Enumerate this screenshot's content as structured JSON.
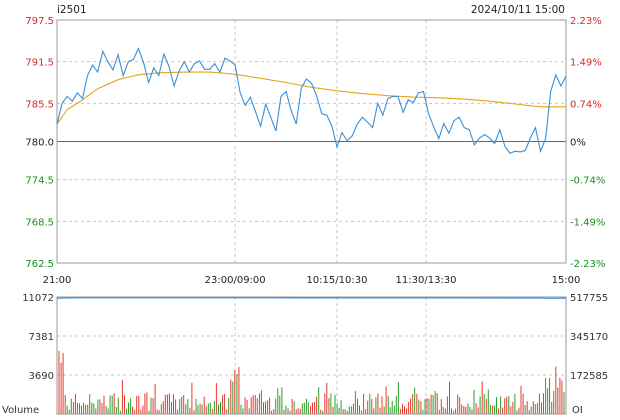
{
  "chart_data": {
    "type": "line",
    "symbol": "i2501",
    "datetime": "2024/10/11 15:00",
    "price_axis": {
      "ticks": [
        "797.5",
        "791.5",
        "785.5",
        "780.0",
        "774.5",
        "768.5",
        "762.5"
      ],
      "values": [
        797.5,
        791.5,
        785.5,
        780.0,
        774.5,
        768.5,
        762.5
      ],
      "ylim": [
        762.5,
        797.5
      ],
      "reference": 780.0
    },
    "pct_axis": {
      "ticks": [
        "2.23%",
        "1.49%",
        "0.74%",
        "0%",
        "-0.74%",
        "-1.49%",
        "-2.23%"
      ]
    },
    "time_axis": {
      "ticks": [
        "21:00",
        "23:00/09:00",
        "10:15/10:30",
        "11:30/13:30",
        "15:00"
      ],
      "positions": [
        0,
        0.35,
        0.55,
        0.725,
        1.0
      ]
    },
    "series": [
      {
        "key": "price",
        "color": "#3a8fd9",
        "x": [
          0,
          0.01,
          0.02,
          0.03,
          0.04,
          0.05,
          0.06,
          0.07,
          0.08,
          0.09,
          0.1,
          0.11,
          0.12,
          0.13,
          0.14,
          0.15,
          0.16,
          0.17,
          0.18,
          0.19,
          0.2,
          0.21,
          0.22,
          0.23,
          0.24,
          0.25,
          0.26,
          0.27,
          0.28,
          0.29,
          0.3,
          0.31,
          0.32,
          0.33,
          0.34,
          0.35,
          0.36,
          0.37,
          0.38,
          0.39,
          0.4,
          0.41,
          0.42,
          0.43,
          0.44,
          0.45,
          0.46,
          0.47,
          0.48,
          0.49,
          0.5,
          0.51,
          0.52,
          0.53,
          0.54,
          0.55,
          0.56,
          0.57,
          0.58,
          0.59,
          0.6,
          0.61,
          0.62,
          0.63,
          0.64,
          0.65,
          0.66,
          0.67,
          0.68,
          0.69,
          0.7,
          0.71,
          0.72,
          0.73,
          0.74,
          0.75,
          0.76,
          0.77,
          0.78,
          0.79,
          0.8,
          0.81,
          0.82,
          0.83,
          0.84,
          0.85,
          0.86,
          0.87,
          0.88,
          0.89,
          0.9,
          0.91,
          0.92,
          0.93,
          0.94,
          0.95,
          0.96,
          0.97,
          0.98,
          0.99,
          1.0
        ],
        "y": [
          782.5,
          785.5,
          786.5,
          785.8,
          787,
          786.2,
          789.5,
          791,
          790,
          793,
          791.5,
          790.3,
          792.5,
          789.5,
          791.5,
          791.8,
          793.4,
          791.4,
          788.5,
          790.6,
          789.5,
          792.6,
          790.8,
          788,
          790.2,
          791.5,
          790,
          791.2,
          791.6,
          790.4,
          790.4,
          791.2,
          790,
          792,
          791.6,
          791,
          787,
          785.2,
          786.4,
          784.3,
          782.2,
          785.4,
          783.5,
          781.5,
          786.5,
          787.2,
          784.5,
          782.5,
          787.7,
          789,
          788.4,
          786.6,
          784,
          783.8,
          782.2,
          779.2,
          781.3,
          780.1,
          780.8,
          782.5,
          783.5,
          782.8,
          782,
          785.5,
          783.8,
          786.2,
          786.5,
          786.5,
          784.2,
          786,
          785.6,
          787,
          787.2,
          784,
          782.1,
          780.4,
          782.6,
          781.2,
          783,
          783.5,
          782,
          781.7,
          779.5,
          780.5,
          781,
          780.5,
          779.7,
          781.7,
          779.3,
          778.3,
          778.6,
          778.5,
          778.7,
          780.5,
          782,
          778.6,
          780.4,
          787.2,
          789.6,
          788,
          789.4
        ]
      },
      {
        "key": "average",
        "color": "#e8a317",
        "x": [
          0,
          0.02,
          0.05,
          0.08,
          0.12,
          0.16,
          0.2,
          0.25,
          0.3,
          0.35,
          0.4,
          0.45,
          0.5,
          0.55,
          0.6,
          0.65,
          0.7,
          0.75,
          0.8,
          0.85,
          0.9,
          0.95,
          1.0
        ],
        "y": [
          782.5,
          784.6,
          786,
          787.6,
          788.9,
          789.6,
          789.9,
          790,
          790,
          789.7,
          789.1,
          788.5,
          787.8,
          787.3,
          786.9,
          786.6,
          786.4,
          786.3,
          786.1,
          785.8,
          785.4,
          785.0,
          785.0
        ]
      }
    ],
    "volume": {
      "label": "Volume",
      "ticks_left": [
        "11072",
        "7381",
        "3690"
      ],
      "values_left": [
        11072,
        7381,
        3690
      ],
      "ylim": [
        0,
        11072
      ],
      "ticks_right": [
        "517755",
        "345170",
        "172585"
      ],
      "oi_label": "OI",
      "oi_color": "#3a8fd9",
      "up_color": "#e8392f",
      "down_color": "#2aa02a",
      "oi_x": [
        0,
        0.02,
        0.05,
        0.1,
        0.2,
        0.3,
        0.35,
        0.4,
        0.5,
        0.6,
        0.7,
        0.8,
        0.9,
        0.95,
        0.97,
        1.0
      ],
      "oi": [
        512000,
        513500,
        514000,
        514200,
        514300,
        514200,
        514300,
        514100,
        513800,
        513500,
        513200,
        513300,
        513000,
        512800,
        512000,
        512500
      ]
    }
  }
}
